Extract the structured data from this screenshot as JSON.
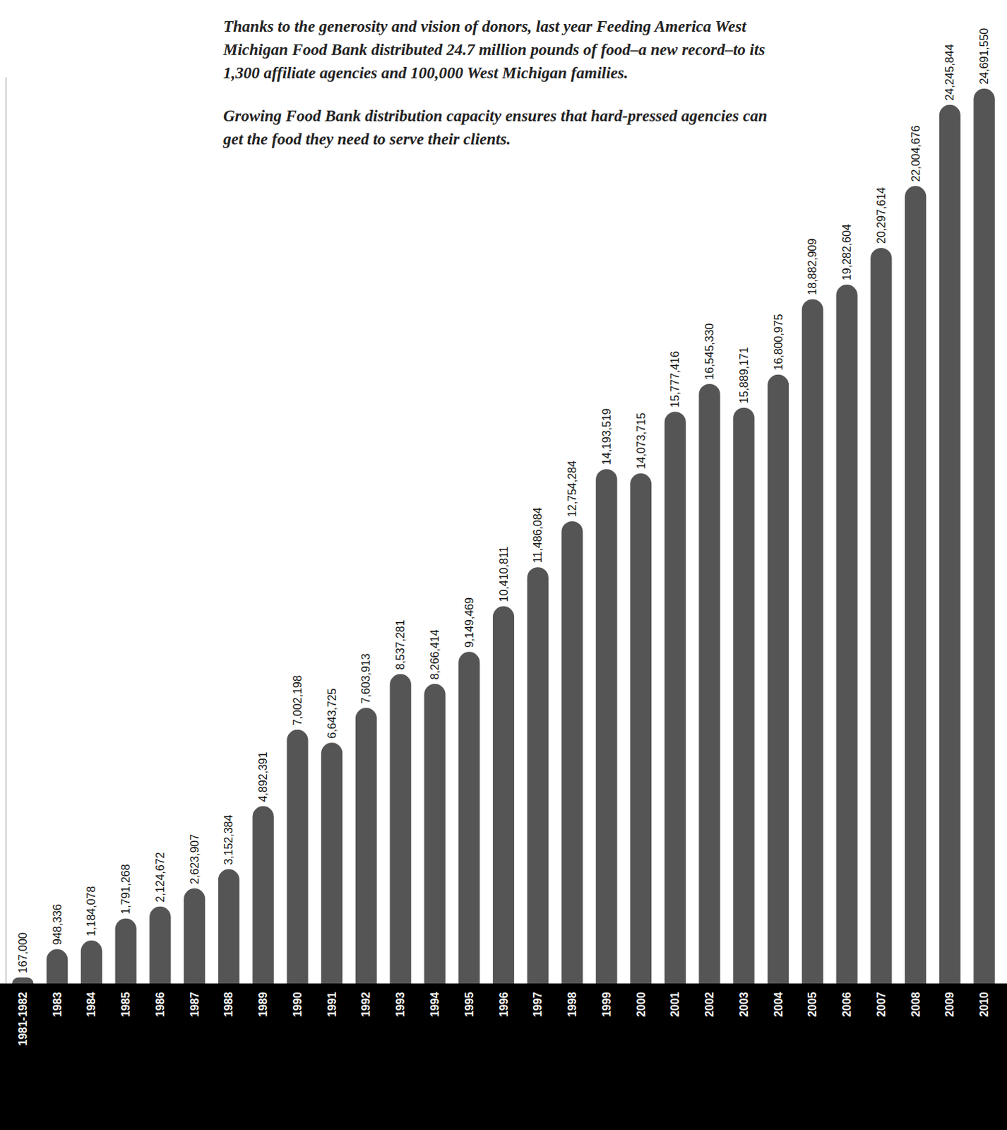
{
  "chart_data": {
    "type": "bar",
    "title": "Thanks to the generosity and vision of donors, last year Feeding America West Michigan Food Bank distributed 24.7 million pounds of food–a new record–to its 1,300 affiliate agencies and 100,000 West Michigan families.",
    "subtitle": "Growing Food Bank distribution capacity ensures that hard-pressed agencies can get the food they need to serve their clients.",
    "categories": [
      "1981-1982",
      "1983",
      "1984",
      "1985",
      "1986",
      "1987",
      "1988",
      "1989",
      "1990",
      "1991",
      "1992",
      "1993",
      "1994",
      "1995",
      "1996",
      "1997",
      "1998",
      "1999",
      "2000",
      "2001",
      "2002",
      "2003",
      "2004",
      "2005",
      "2006",
      "2007",
      "2008",
      "2009",
      "2010"
    ],
    "values": [
      167000,
      948336,
      1184078,
      1791268,
      2124672,
      2623907,
      3152384,
      4892391,
      7002198,
      6643725,
      7603913,
      8537281,
      8266414,
      9149469,
      10410811,
      11486084,
      12754284,
      14193519,
      14073715,
      15777416,
      16545330,
      15889171,
      16800975,
      18882909,
      19282604,
      20297614,
      22004676,
      24245844,
      24691550
    ],
    "value_labels": [
      "167,000",
      "948,336",
      "1,184,078",
      "1,791,268",
      "2,124,672",
      "2,623,907",
      "3,152,384",
      "4,892,391",
      "7,002,198",
      "6,643,725",
      "7,603,913",
      "8,537,281",
      "8,266,414",
      "9,149,469",
      "10,410,811",
      "11,486,084",
      "12,754,284",
      "14,193,519",
      "14,073,715",
      "15,777,416",
      "16,545,330",
      "15,889,171",
      "16,800,975",
      "18,882,909",
      "19,282,604",
      "20,297,614",
      "22,004,676",
      "24,245,844",
      "24,691,550"
    ],
    "color": "#555555",
    "ylim": [
      0,
      25000000
    ],
    "grid": false,
    "data_labels": true,
    "tick_labels": "x"
  }
}
